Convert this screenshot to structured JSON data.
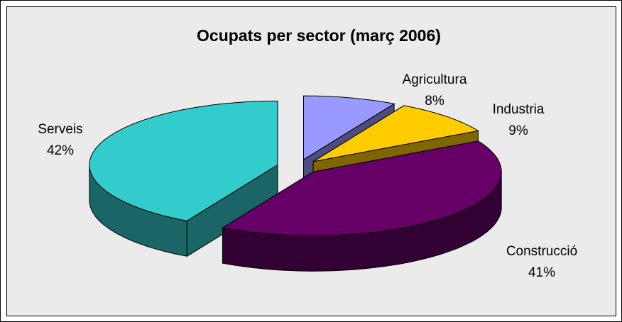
{
  "chart_data": {
    "type": "pie3d",
    "title": "Ocupats per sector (març 2006)",
    "categories": [
      "Agricultura",
      "Industria",
      "Construcció",
      "Serveis"
    ],
    "values": [
      8,
      9,
      41,
      42
    ],
    "value_labels": [
      "8%",
      "9%",
      "41%",
      "42%"
    ],
    "colors": [
      "#9999ff",
      "#ffcc00",
      "#660066",
      "#33cccc"
    ]
  }
}
